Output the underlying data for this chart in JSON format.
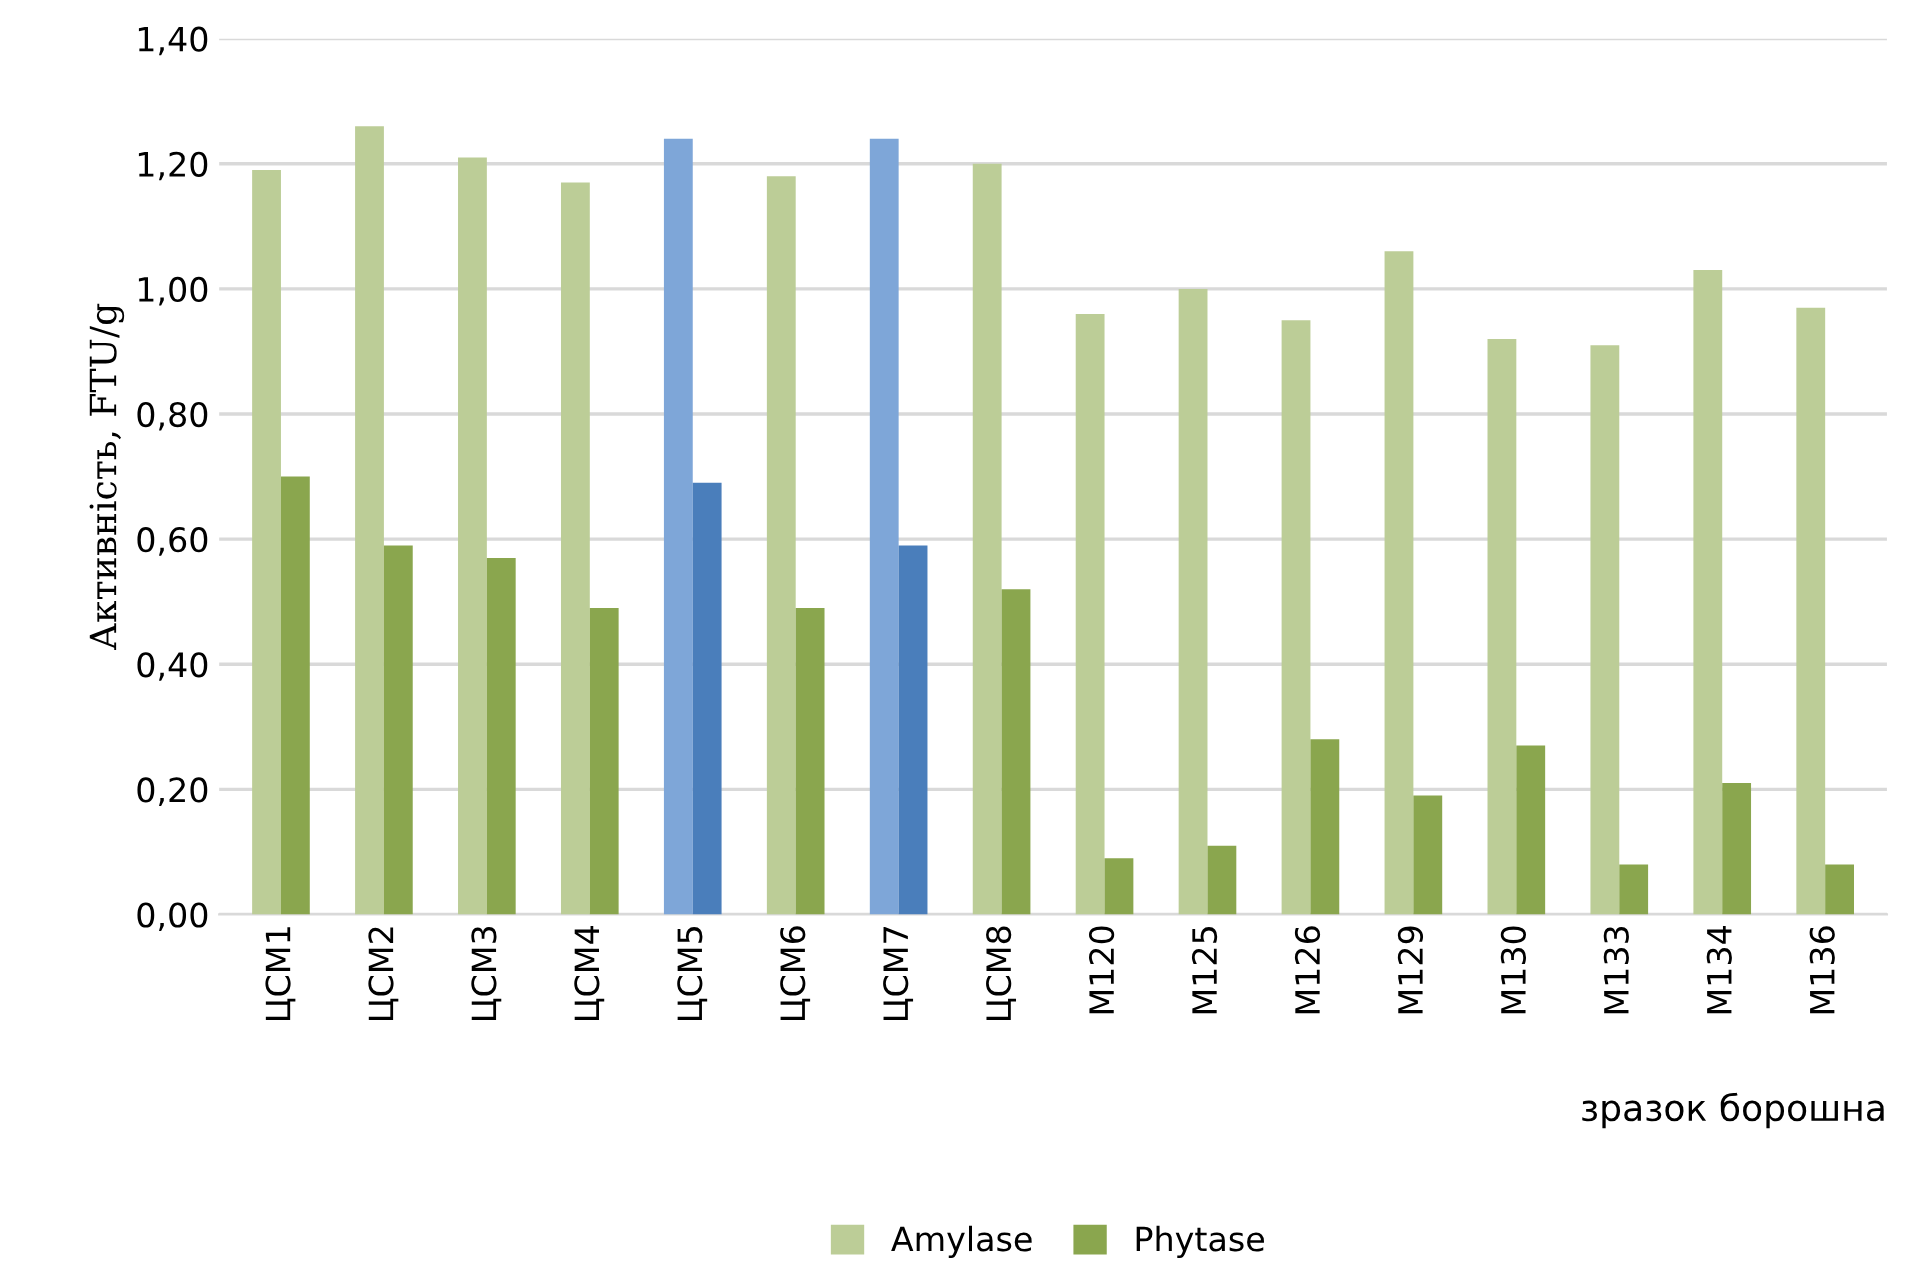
{
  "chart_data": {
    "type": "bar",
    "xlabel": "зразок борошна",
    "ylabel": "Активність, FTU/g",
    "categories": [
      "ЦСМ1",
      "ЦСМ2",
      "ЦСМ3",
      "ЦСМ4",
      "ЦСМ5",
      "ЦСМ6",
      "ЦСМ7",
      "ЦСМ8",
      "М120",
      "М125",
      "М126",
      "М129",
      "М130",
      "М133",
      "М134",
      "М136"
    ],
    "series": [
      {
        "name": "Amylase",
        "color": "#bccd97",
        "colors": [
          "#bccd97",
          "#bccd97",
          "#bccd97",
          "#bccd97",
          "#7ea6d8",
          "#bccd97",
          "#7ea6d8",
          "#bccd97",
          "#bccd97",
          "#bccd97",
          "#bccd97",
          "#bccd97",
          "#bccd97",
          "#bccd97",
          "#bccd97",
          "#bccd97"
        ],
        "values": [
          1.19,
          1.26,
          1.21,
          1.17,
          1.24,
          1.18,
          1.24,
          1.2,
          0.96,
          1.0,
          0.95,
          1.06,
          0.92,
          0.91,
          1.03,
          0.97
        ]
      },
      {
        "name": "Phytase",
        "color": "#8aa64e",
        "colors": [
          "#8aa64e",
          "#8aa64e",
          "#8aa64e",
          "#8aa64e",
          "#4a7ebb",
          "#8aa64e",
          "#4a7ebb",
          "#8aa64e",
          "#8aa64e",
          "#8aa64e",
          "#8aa64e",
          "#8aa64e",
          "#8aa64e",
          "#8aa64e",
          "#8aa64e",
          "#8aa64e"
        ],
        "values": [
          0.7,
          0.59,
          0.57,
          0.49,
          0.69,
          0.49,
          0.59,
          0.52,
          0.09,
          0.11,
          0.28,
          0.19,
          0.27,
          0.08,
          0.21,
          0.08
        ]
      }
    ],
    "ylim": [
      0,
      1.4
    ],
    "yticks": [
      {
        "value": 0,
        "label": "0,00"
      },
      {
        "value": 0.2,
        "label": "0,20"
      },
      {
        "value": 0.4,
        "label": "0,40"
      },
      {
        "value": 0.6,
        "label": "0,60"
      },
      {
        "value": 0.8,
        "label": "0,80"
      },
      {
        "value": 1.0,
        "label": "1,00"
      },
      {
        "value": 1.2,
        "label": "1,20"
      },
      {
        "value": 1.4,
        "label": "1,40"
      }
    ],
    "grid": "y",
    "legend": "bottom"
  }
}
